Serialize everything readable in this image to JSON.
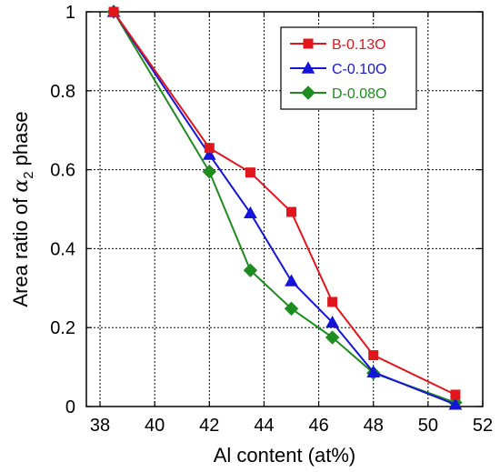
{
  "chart_data": {
    "type": "line",
    "xlabel": "Al content (at%)",
    "ylabel": {
      "prefix": "Area ratio of ",
      "symbol": "α",
      "subscript": "2",
      "suffix": " phase"
    },
    "xlim": [
      37.5,
      52
    ],
    "ylim": [
      0,
      1
    ],
    "xticks": [
      38,
      40,
      42,
      44,
      46,
      48,
      50,
      52
    ],
    "yticks": [
      0,
      0.2,
      0.4,
      0.6,
      0.8,
      1
    ],
    "ytick_labels": [
      "0",
      "0.2",
      "0.4",
      "0.6",
      "0.8",
      "1"
    ],
    "grid": true,
    "legend_position": "top-right",
    "series": [
      {
        "name": "B-0.13O",
        "color": "#e0161c",
        "marker": "square",
        "x": [
          38.5,
          42,
          43.5,
          45,
          46.5,
          48,
          51
        ],
        "y": [
          1.0,
          0.655,
          0.593,
          0.493,
          0.265,
          0.13,
          0.03
        ]
      },
      {
        "name": "C-0.10O",
        "color": "#1515d8",
        "marker": "triangle",
        "x": [
          38.5,
          42,
          43.5,
          45,
          46.5,
          48,
          51
        ],
        "y": [
          1.0,
          0.638,
          0.49,
          0.318,
          0.213,
          0.087,
          0.005
        ]
      },
      {
        "name": "D-0.08O",
        "color": "#1e8c1e",
        "marker": "diamond",
        "x": [
          38.5,
          42,
          43.5,
          45,
          46.5,
          48,
          51
        ],
        "y": [
          1.0,
          0.595,
          0.345,
          0.248,
          0.175,
          0.085,
          0.01
        ]
      }
    ]
  }
}
